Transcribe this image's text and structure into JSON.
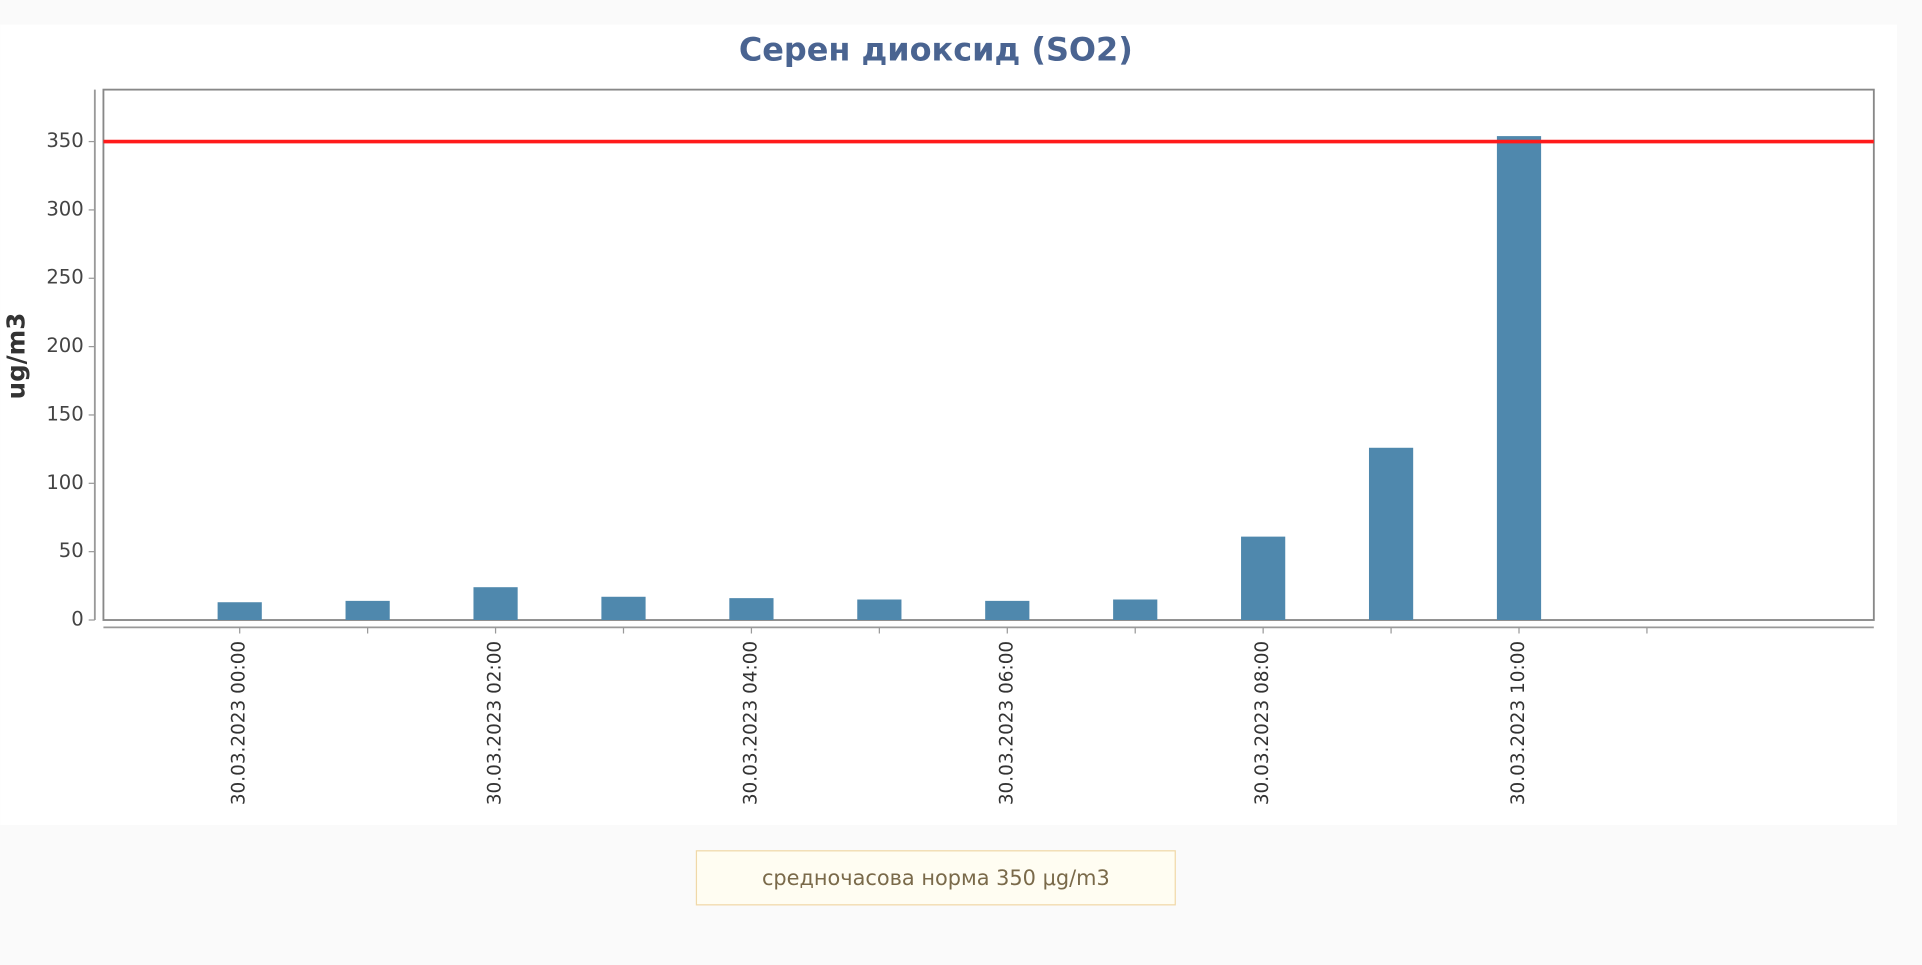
{
  "chart_data": {
    "type": "bar",
    "title": "Серен диоксид (SO2)",
    "y_label": "ug/m3",
    "categories": [
      "30.03.2023 00:00",
      null,
      "30.03.2023 02:00",
      null,
      "30.03.2023 04:00",
      null,
      "30.03.2023 06:00",
      null,
      "30.03.2023 08:00",
      null,
      "30.03.2023 10:00",
      null
    ],
    "values": [
      13,
      14,
      24,
      17,
      16,
      15,
      14,
      15,
      61,
      126,
      354,
      null
    ],
    "color": "#4f88ad",
    "ylim": [
      0,
      388
    ],
    "yticks": [
      0,
      50,
      100,
      150,
      200,
      250,
      300,
      350
    ],
    "threshold": 350,
    "threshold_color": "#ff1a1a",
    "note": "средночасова норма 350 μg/m3"
  }
}
